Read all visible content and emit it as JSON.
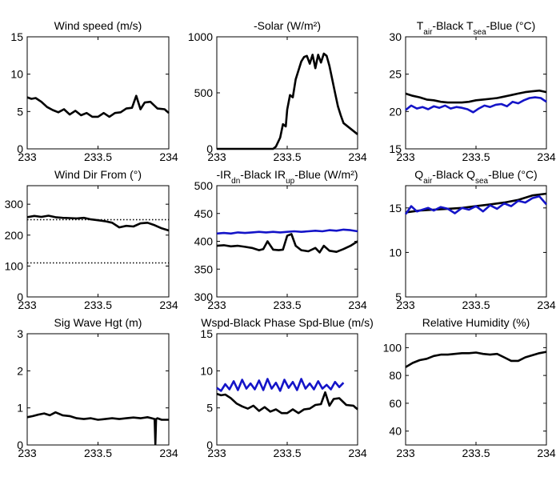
{
  "colors": {
    "black": "#000000",
    "blue": "#1414c8"
  },
  "chart_data": [
    {
      "type": "line",
      "title": "Wind speed (m/s)",
      "xlim": [
        233,
        234
      ],
      "ylim": [
        0,
        15
      ],
      "xticks": [
        233,
        233.5,
        234
      ],
      "xtick_labels": [
        "233",
        "233.5",
        "234"
      ],
      "yticks": [
        0,
        5,
        10,
        15
      ],
      "ytick_labels": [
        "0",
        "5",
        "10",
        "15"
      ],
      "series": [
        {
          "color": "black",
          "style": "solid",
          "x": [
            233.0,
            233.03,
            233.06,
            233.1,
            233.14,
            233.18,
            233.22,
            233.26,
            233.3,
            233.34,
            233.38,
            233.42,
            233.46,
            233.5,
            233.54,
            233.58,
            233.62,
            233.66,
            233.7,
            233.74,
            233.77,
            233.8,
            233.83,
            233.87,
            233.92,
            233.97,
            234.0
          ],
          "y": [
            6.9,
            6.7,
            6.8,
            6.3,
            5.6,
            5.2,
            4.9,
            5.3,
            4.6,
            5.1,
            4.5,
            4.8,
            4.3,
            4.3,
            4.8,
            4.3,
            4.8,
            4.9,
            5.4,
            5.5,
            7.1,
            5.3,
            6.2,
            6.3,
            5.4,
            5.3,
            4.8
          ]
        }
      ]
    },
    {
      "type": "line",
      "title": "-Solar (W/m²)",
      "xlim": [
        233,
        234
      ],
      "ylim": [
        0,
        1000
      ],
      "xticks": [
        233,
        233.5,
        234
      ],
      "xtick_labels": [
        "233",
        "233.5",
        "234"
      ],
      "yticks": [
        0,
        500,
        1000
      ],
      "ytick_labels": [
        "0",
        "500",
        "1000"
      ],
      "series": [
        {
          "color": "black",
          "style": "solid",
          "x": [
            233.0,
            233.1,
            233.2,
            233.3,
            233.4,
            233.42,
            233.45,
            233.47,
            233.49,
            233.5,
            233.52,
            233.54,
            233.56,
            233.58,
            233.6,
            233.62,
            233.64,
            233.66,
            233.68,
            233.7,
            233.72,
            233.74,
            233.76,
            233.78,
            233.8,
            233.82,
            233.84,
            233.86,
            233.88,
            233.9,
            233.95,
            234.0
          ],
          "y": [
            0,
            0,
            0,
            0,
            0,
            20,
            100,
            220,
            200,
            350,
            480,
            460,
            620,
            700,
            780,
            820,
            830,
            760,
            840,
            720,
            840,
            770,
            850,
            830,
            740,
            620,
            500,
            380,
            300,
            230,
            180,
            130
          ]
        }
      ]
    },
    {
      "type": "line",
      "title": "T_air-Black  T_sea-Blue (°C)",
      "xlim": [
        233,
        234
      ],
      "ylim": [
        15,
        30
      ],
      "xticks": [
        233,
        233.5,
        234
      ],
      "xtick_labels": [
        "233",
        "233.5",
        "234"
      ],
      "yticks": [
        15,
        20,
        25,
        30
      ],
      "ytick_labels": [
        "15",
        "20",
        "25",
        "30"
      ],
      "series": [
        {
          "color": "black",
          "style": "solid",
          "x": [
            233.0,
            233.05,
            233.1,
            233.15,
            233.2,
            233.25,
            233.3,
            233.35,
            233.4,
            233.45,
            233.5,
            233.55,
            233.6,
            233.65,
            233.7,
            233.75,
            233.8,
            233.85,
            233.9,
            233.95,
            234.0
          ],
          "y": [
            22.4,
            22.1,
            21.9,
            21.6,
            21.5,
            21.3,
            21.2,
            21.2,
            21.2,
            21.3,
            21.5,
            21.6,
            21.7,
            21.8,
            22.0,
            22.2,
            22.4,
            22.6,
            22.7,
            22.8,
            22.6
          ]
        },
        {
          "color": "blue",
          "style": "solid",
          "x": [
            233.0,
            233.04,
            233.08,
            233.12,
            233.16,
            233.2,
            233.24,
            233.28,
            233.32,
            233.36,
            233.4,
            233.44,
            233.48,
            233.52,
            233.56,
            233.6,
            233.64,
            233.68,
            233.72,
            233.76,
            233.8,
            233.84,
            233.88,
            233.92,
            233.96,
            234.0
          ],
          "y": [
            20.2,
            20.8,
            20.4,
            20.6,
            20.3,
            20.7,
            20.5,
            20.8,
            20.4,
            20.6,
            20.5,
            20.3,
            19.9,
            20.4,
            20.8,
            20.6,
            20.9,
            21.0,
            20.7,
            21.3,
            21.1,
            21.5,
            21.8,
            21.9,
            21.8,
            21.3
          ]
        }
      ]
    },
    {
      "type": "line",
      "title": "Wind Dir From (°)",
      "xlim": [
        233,
        234
      ],
      "ylim": [
        0,
        360
      ],
      "xticks": [
        233,
        233.5,
        234
      ],
      "xtick_labels": [
        "233",
        "233.5",
        "234"
      ],
      "yticks": [
        0,
        100,
        200,
        300
      ],
      "ytick_labels": [
        "0",
        "100",
        "200",
        "300"
      ],
      "series": [
        {
          "color": "black",
          "style": "solid",
          "x": [
            233.0,
            233.05,
            233.1,
            233.15,
            233.2,
            233.25,
            233.3,
            233.35,
            233.4,
            233.45,
            233.5,
            233.55,
            233.6,
            233.65,
            233.7,
            233.75,
            233.8,
            233.85,
            233.9,
            233.95,
            234.0
          ],
          "y": [
            258,
            262,
            259,
            263,
            258,
            256,
            255,
            254,
            256,
            251,
            248,
            245,
            240,
            225,
            230,
            228,
            238,
            240,
            232,
            222,
            215
          ]
        },
        {
          "color": "black",
          "style": "dotted",
          "x": [
            233.0,
            234.0
          ],
          "y": [
            250,
            250
          ]
        },
        {
          "color": "black",
          "style": "dotted",
          "x": [
            233.0,
            234.0
          ],
          "y": [
            110,
            110
          ]
        }
      ]
    },
    {
      "type": "line",
      "title": "-IR_dn-Black  IR_up-Blue (W/m²)",
      "xlim": [
        233,
        234
      ],
      "ylim": [
        300,
        500
      ],
      "xticks": [
        233,
        233.5,
        234
      ],
      "xtick_labels": [
        "233",
        "233.5",
        "234"
      ],
      "yticks": [
        300,
        350,
        400,
        450,
        500
      ],
      "ytick_labels": [
        "300",
        "350",
        "400",
        "450",
        "500"
      ],
      "series": [
        {
          "color": "black",
          "style": "solid",
          "x": [
            233.0,
            233.05,
            233.1,
            233.15,
            233.2,
            233.25,
            233.3,
            233.33,
            233.36,
            233.4,
            233.44,
            233.47,
            233.5,
            233.53,
            233.56,
            233.6,
            233.65,
            233.7,
            233.73,
            233.76,
            233.8,
            233.85,
            233.9,
            233.95,
            234.0
          ],
          "y": [
            392,
            393,
            391,
            392,
            390,
            388,
            384,
            386,
            400,
            385,
            384,
            385,
            410,
            413,
            392,
            384,
            382,
            388,
            380,
            392,
            383,
            381,
            386,
            392,
            400
          ]
        },
        {
          "color": "blue",
          "style": "solid",
          "x": [
            233.0,
            233.05,
            233.1,
            233.15,
            233.2,
            233.25,
            233.3,
            233.35,
            233.4,
            233.45,
            233.5,
            233.55,
            233.6,
            233.65,
            233.7,
            233.75,
            233.8,
            233.85,
            233.9,
            233.95,
            234.0
          ],
          "y": [
            414,
            415,
            414,
            416,
            415,
            416,
            417,
            416,
            417,
            416,
            417,
            418,
            417,
            418,
            419,
            418,
            420,
            419,
            421,
            420,
            418
          ]
        }
      ]
    },
    {
      "type": "line",
      "title": "Q_air-Black  Q_sea-Blue (°C)",
      "xlim": [
        233,
        234
      ],
      "ylim": [
        5,
        17.5
      ],
      "xticks": [
        233,
        233.5,
        234
      ],
      "xtick_labels": [
        "233",
        "233.5",
        "234"
      ],
      "yticks": [
        5,
        10,
        15
      ],
      "ytick_labels": [
        "5",
        "10",
        "15"
      ],
      "series": [
        {
          "color": "black",
          "style": "solid",
          "x": [
            233.0,
            233.1,
            233.2,
            233.3,
            233.4,
            233.5,
            233.6,
            233.7,
            233.8,
            233.9,
            234.0
          ],
          "y": [
            14.5,
            14.7,
            14.8,
            14.9,
            15.0,
            15.2,
            15.4,
            15.6,
            15.9,
            16.4,
            16.6
          ]
        },
        {
          "color": "blue",
          "style": "solid",
          "x": [
            233.0,
            233.04,
            233.08,
            233.12,
            233.16,
            233.2,
            233.25,
            233.3,
            233.35,
            233.4,
            233.45,
            233.5,
            233.55,
            233.6,
            233.65,
            233.7,
            233.75,
            233.8,
            233.85,
            233.9,
            233.95,
            234.0
          ],
          "y": [
            14.3,
            15.2,
            14.6,
            14.8,
            15.0,
            14.7,
            15.1,
            14.9,
            14.4,
            15.0,
            14.8,
            15.2,
            14.6,
            15.3,
            14.9,
            15.5,
            15.2,
            15.8,
            15.6,
            16.1,
            16.3,
            15.4
          ]
        }
      ]
    },
    {
      "type": "line",
      "title": "Sig Wave Hgt (m)",
      "xlim": [
        233,
        234
      ],
      "ylim": [
        0,
        3
      ],
      "xticks": [
        233,
        233.5,
        234
      ],
      "xtick_labels": [
        "233",
        "233.5",
        "234"
      ],
      "yticks": [
        0,
        1,
        2,
        3
      ],
      "ytick_labels": [
        "0",
        "1",
        "2",
        "3"
      ],
      "series": [
        {
          "color": "black",
          "style": "solid",
          "x": [
            233.0,
            233.04,
            233.08,
            233.12,
            233.16,
            233.2,
            233.25,
            233.3,
            233.35,
            233.4,
            233.45,
            233.5,
            233.55,
            233.6,
            233.65,
            233.7,
            233.75,
            233.8,
            233.85,
            233.88,
            233.9,
            233.905,
            233.91,
            233.92,
            233.95,
            234.0
          ],
          "y": [
            0.75,
            0.78,
            0.82,
            0.85,
            0.8,
            0.88,
            0.8,
            0.78,
            0.72,
            0.7,
            0.72,
            0.68,
            0.7,
            0.72,
            0.7,
            0.72,
            0.74,
            0.72,
            0.75,
            0.72,
            0.7,
            0.02,
            0.7,
            0.72,
            0.68,
            0.68
          ]
        }
      ]
    },
    {
      "type": "line",
      "title": "Wspd-Black  Phase Spd-Blue (m/s)",
      "xlim": [
        233,
        234
      ],
      "ylim": [
        0,
        15
      ],
      "xticks": [
        233,
        233.5,
        234
      ],
      "xtick_labels": [
        "233",
        "233.5",
        "234"
      ],
      "yticks": [
        0,
        5,
        10,
        15
      ],
      "ytick_labels": [
        "0",
        "5",
        "10",
        "15"
      ],
      "series": [
        {
          "color": "black",
          "style": "solid",
          "x": [
            233.0,
            233.03,
            233.06,
            233.1,
            233.14,
            233.18,
            233.22,
            233.26,
            233.3,
            233.34,
            233.38,
            233.42,
            233.46,
            233.5,
            233.54,
            233.58,
            233.62,
            233.66,
            233.7,
            233.74,
            233.77,
            233.8,
            233.83,
            233.87,
            233.92,
            233.97,
            234.0
          ],
          "y": [
            6.9,
            6.7,
            6.8,
            6.3,
            5.6,
            5.2,
            4.9,
            5.3,
            4.6,
            5.1,
            4.5,
            4.8,
            4.3,
            4.3,
            4.8,
            4.3,
            4.8,
            4.9,
            5.4,
            5.5,
            7.1,
            5.3,
            6.2,
            6.3,
            5.4,
            5.3,
            4.8
          ]
        },
        {
          "color": "blue",
          "style": "solid",
          "x": [
            233.0,
            233.03,
            233.06,
            233.09,
            233.12,
            233.15,
            233.18,
            233.21,
            233.24,
            233.27,
            233.3,
            233.33,
            233.36,
            233.39,
            233.42,
            233.45,
            233.48,
            233.51,
            233.54,
            233.57,
            233.6,
            233.63,
            233.66,
            233.69,
            233.72,
            233.75,
            233.78,
            233.81,
            233.84,
            233.87,
            233.9
          ],
          "y": [
            7.7,
            7.3,
            8.2,
            7.5,
            8.6,
            7.4,
            8.8,
            7.6,
            8.3,
            7.5,
            8.7,
            7.4,
            8.9,
            7.6,
            8.4,
            7.3,
            8.8,
            7.7,
            8.5,
            7.4,
            8.9,
            7.6,
            8.3,
            7.5,
            8.6,
            7.6,
            8.1,
            7.5,
            8.5,
            7.8,
            8.4
          ]
        }
      ]
    },
    {
      "type": "line",
      "title": "Relative Humidity (%)",
      "xlim": [
        233,
        234
      ],
      "ylim": [
        30,
        110
      ],
      "xticks": [
        233,
        233.5,
        234
      ],
      "xtick_labels": [
        "233",
        "233.5",
        "234"
      ],
      "yticks": [
        40,
        60,
        80,
        100
      ],
      "ytick_labels": [
        "40",
        "60",
        "80",
        "100"
      ],
      "series": [
        {
          "color": "black",
          "style": "solid",
          "x": [
            233.0,
            233.05,
            233.1,
            233.15,
            233.2,
            233.25,
            233.3,
            233.35,
            233.4,
            233.45,
            233.5,
            233.55,
            233.6,
            233.65,
            233.7,
            233.75,
            233.8,
            233.85,
            233.9,
            233.95,
            234.0
          ],
          "y": [
            86,
            89,
            91,
            92,
            94,
            95,
            95,
            95.5,
            96,
            96,
            96.5,
            95.5,
            95,
            95.5,
            93,
            90.5,
            90.5,
            93,
            94.5,
            96,
            97
          ]
        }
      ]
    }
  ]
}
